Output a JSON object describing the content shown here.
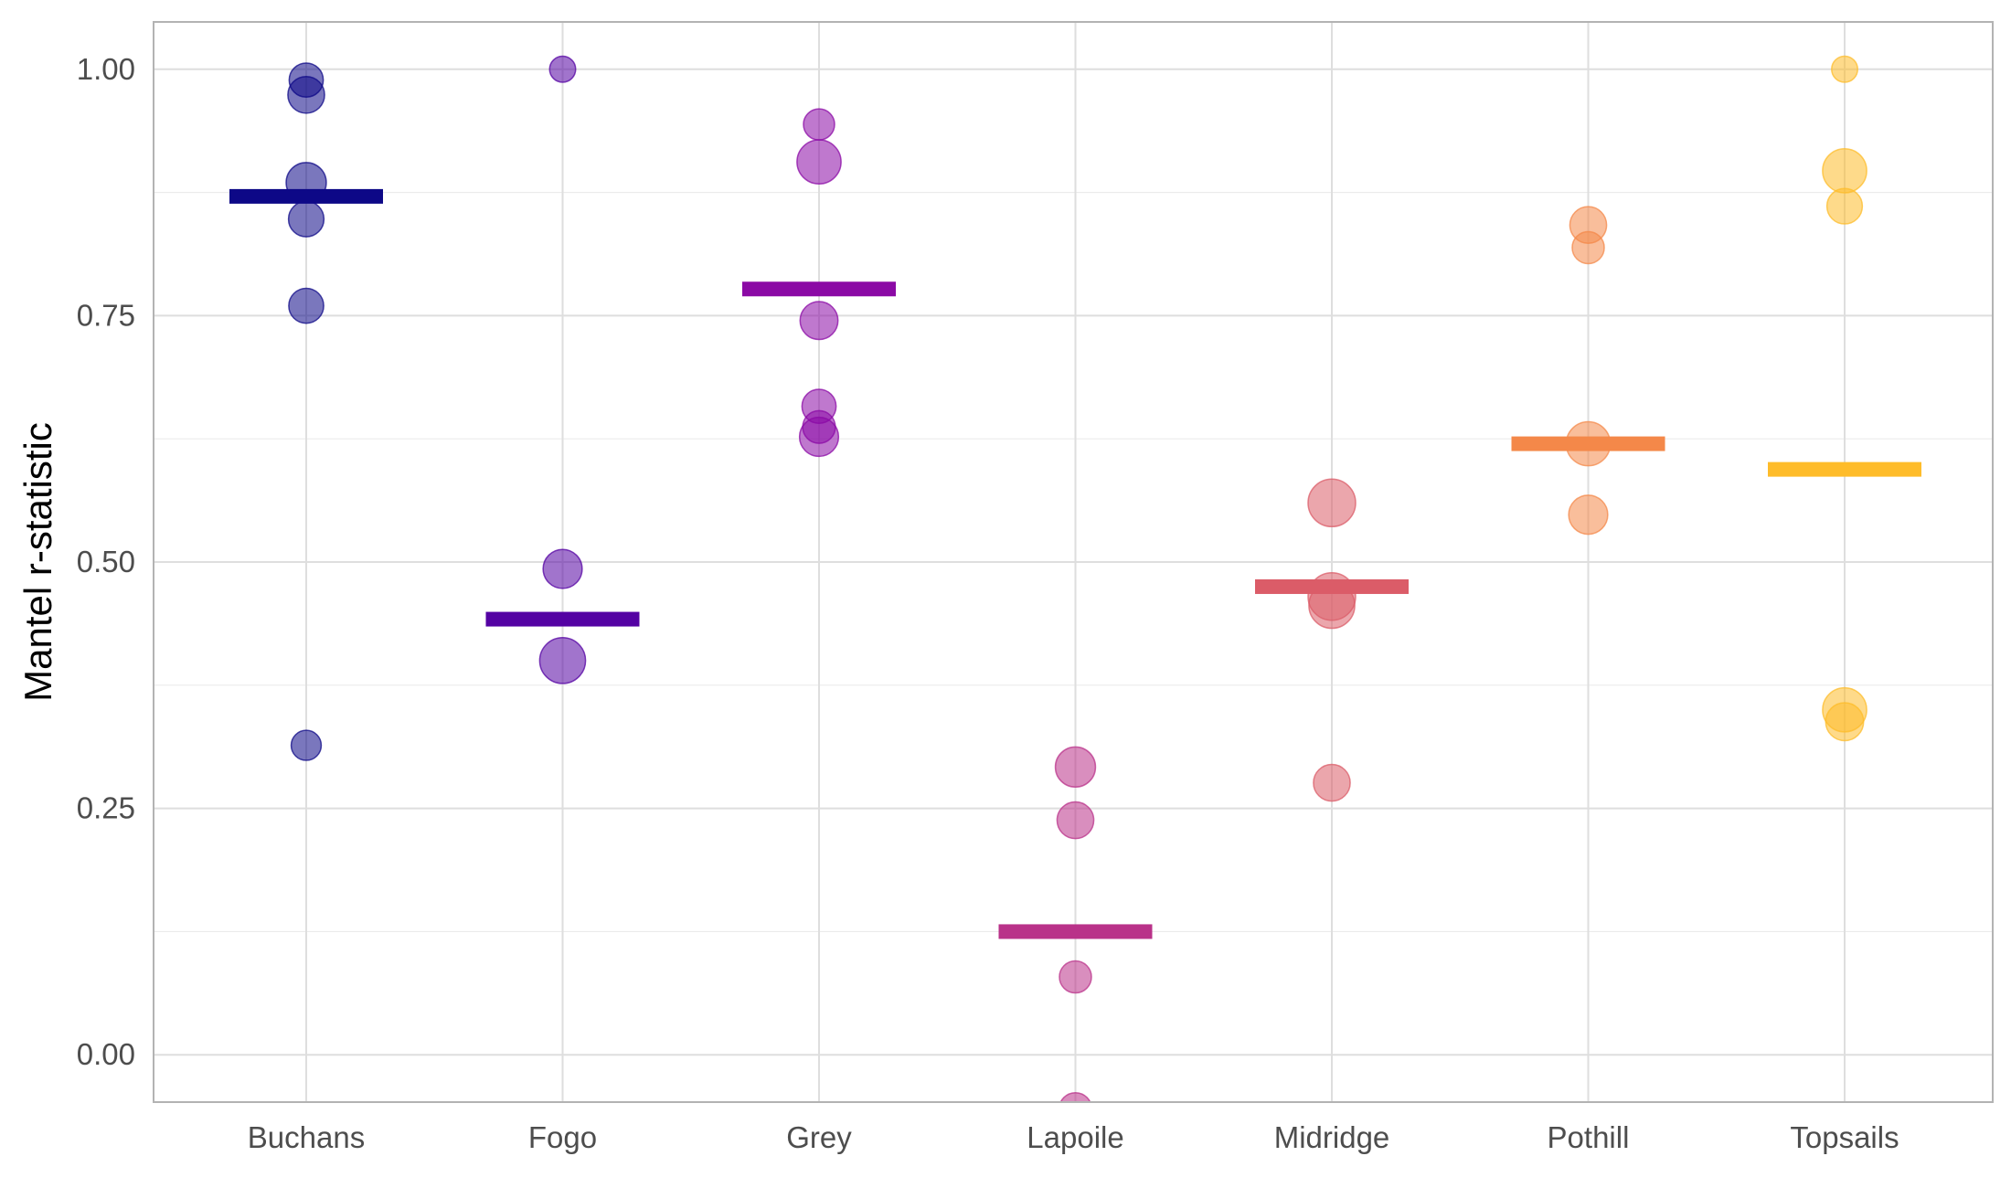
{
  "chart_data": {
    "type": "scatter",
    "ylabel": "Mantel r-statistic",
    "xlabel": "",
    "title": "",
    "ylim": [
      -0.048,
      1.048
    ],
    "y_breaks": [
      0.0,
      0.25,
      0.5,
      0.75,
      1.0
    ],
    "y_tick_labels": [
      "0.00",
      "0.25",
      "0.50",
      "0.75",
      "1.00"
    ],
    "categories": [
      "Buchans",
      "Fogo",
      "Grey",
      "Lapoile",
      "Midridge",
      "Pothill",
      "Topsails"
    ],
    "grid": true,
    "legend": "none",
    "series": [
      {
        "category": "Buchans",
        "color": "#0D0887",
        "mean": 0.871,
        "points": [
          {
            "y": 0.989,
            "size": 0.35
          },
          {
            "y": 0.974,
            "size": 0.45
          },
          {
            "y": 0.885,
            "size": 0.6
          },
          {
            "y": 0.848,
            "size": 0.4
          },
          {
            "y": 0.76,
            "size": 0.38
          },
          {
            "y": 0.314,
            "size": 0.22
          }
        ]
      },
      {
        "category": "Fogo",
        "color": "#5402A3",
        "mean": 0.442,
        "points": [
          {
            "y": 1.0,
            "size": 0.12
          },
          {
            "y": 0.493,
            "size": 0.55
          },
          {
            "y": 0.4,
            "size": 0.9
          }
        ]
      },
      {
        "category": "Grey",
        "color": "#8B0AA5",
        "mean": 0.777,
        "points": [
          {
            "y": 0.944,
            "size": 0.25
          },
          {
            "y": 0.906,
            "size": 0.8
          },
          {
            "y": 0.745,
            "size": 0.5
          },
          {
            "y": 0.658,
            "size": 0.35
          },
          {
            "y": 0.637,
            "size": 0.3
          },
          {
            "y": 0.627,
            "size": 0.55
          }
        ]
      },
      {
        "category": "Lapoile",
        "color": "#B93289",
        "mean": 0.125,
        "points": [
          {
            "y": 0.292,
            "size": 0.6
          },
          {
            "y": 0.238,
            "size": 0.45
          },
          {
            "y": 0.079,
            "size": 0.28
          },
          {
            "y": -0.055,
            "size": 0.3
          }
        ]
      },
      {
        "category": "Midridge",
        "color": "#DB5C68",
        "mean": 0.475,
        "points": [
          {
            "y": 0.56,
            "size": 1.0
          },
          {
            "y": 0.465,
            "size": 1.0
          },
          {
            "y": 0.456,
            "size": 0.9
          },
          {
            "y": 0.276,
            "size": 0.45
          }
        ]
      },
      {
        "category": "Pothill",
        "color": "#F48849",
        "mean": 0.62,
        "points": [
          {
            "y": 0.842,
            "size": 0.45
          },
          {
            "y": 0.819,
            "size": 0.28
          },
          {
            "y": 0.62,
            "size": 0.8
          },
          {
            "y": 0.548,
            "size": 0.55
          }
        ]
      },
      {
        "category": "Topsails",
        "color": "#FEBC2A",
        "mean": 0.594,
        "points": [
          {
            "y": 1.0,
            "size": 0.12
          },
          {
            "y": 0.897,
            "size": 0.8
          },
          {
            "y": 0.861,
            "size": 0.4
          },
          {
            "y": 0.35,
            "size": 0.8
          },
          {
            "y": 0.338,
            "size": 0.5
          }
        ]
      }
    ]
  }
}
